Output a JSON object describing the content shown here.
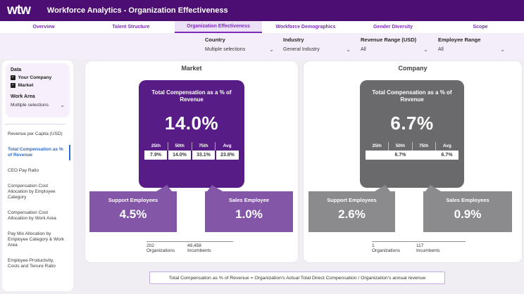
{
  "header": {
    "logo": "wtw",
    "title": "Workforce Analytics - Organization Effectiveness"
  },
  "tabs": [
    {
      "label": "Overview",
      "selected": false
    },
    {
      "label": "Talent Structure",
      "selected": false
    },
    {
      "label": "Organization Effectiveness",
      "selected": true
    },
    {
      "label": "Workforce Demographics",
      "selected": false
    },
    {
      "label": "Gender Diversity",
      "selected": false
    },
    {
      "label": "Scope",
      "selected": false
    }
  ],
  "filters": [
    {
      "label": "Country",
      "value": "Multiple selections"
    },
    {
      "label": "Industry",
      "value": "General Industry"
    },
    {
      "label": "Revenue Range (USD)",
      "value": "All"
    },
    {
      "label": "Employee Range",
      "value": "All"
    }
  ],
  "sidebar": {
    "data_title": "Data",
    "data_options": [
      {
        "label": "Your Company",
        "checked": true
      },
      {
        "label": "Market",
        "checked": true
      }
    ],
    "work_area_title": "Work Area",
    "work_area_value": "Multiple selections",
    "nav": [
      {
        "label": "Revenue per Capita (USD)",
        "selected": false
      },
      {
        "label": "Total Compensation as % of Revenue",
        "selected": true
      },
      {
        "label": "CEO Pay Ratio",
        "selected": false
      },
      {
        "label": "Compensation Cost Allocation by Employee Category",
        "selected": false
      },
      {
        "label": "Compensation Cost Allocation by Work Area",
        "selected": false
      },
      {
        "label": "Pay Mix Allocation by Employee Category & Work Area",
        "selected": false
      },
      {
        "label": "Employee Productivity, Costs and Tenure Ratio",
        "selected": false
      }
    ]
  },
  "panels": [
    {
      "title": "Market",
      "main_card": {
        "title": "Total Compensation as a % of Revenue",
        "value": "14.0%",
        "percentile_headers": [
          "25th",
          "50th",
          "75th",
          "Avg"
        ],
        "percentile_values": [
          "7.9%",
          "14.0%",
          "33.1%",
          "23.8%"
        ]
      },
      "sub_cards": [
        {
          "label": "Support Employees",
          "value": "4.5%"
        },
        {
          "label": "Sales Employee",
          "value": "1.0%"
        }
      ],
      "stats": [
        {
          "value": "202",
          "label": "Organizations"
        },
        {
          "value": "49,458",
          "label": "Incumbents"
        }
      ]
    },
    {
      "title": "Company",
      "main_card": {
        "title": "Total Compensation as a % of Revenue",
        "value": "6.7%",
        "percentile_headers": [
          "25th",
          "50th",
          "75th",
          "Avg"
        ],
        "percentile_values": [
          "",
          "6.7%",
          "",
          "6.7%"
        ]
      },
      "sub_cards": [
        {
          "label": "Support Employees",
          "value": "2.6%"
        },
        {
          "label": "Sales Employees",
          "value": "0.9%"
        }
      ],
      "stats": [
        {
          "value": "1",
          "label": "Organizations"
        },
        {
          "value": "117",
          "label": "Incumbents"
        }
      ]
    }
  ],
  "note": "Total Compensation as % of Revenue = Organization's Actual Total Direct Compensation / Organization's annual revenue",
  "colors": {
    "header_purple": "#4c0e72",
    "accent_purple": "#7a2eb8",
    "market_card_purple": "#571c86",
    "market_sub_purple": "#8356a8",
    "company_card_gray": "#6a696b",
    "company_sub_gray": "#8b8a8c",
    "selected_item_blue": "#2b6cd6",
    "filter_bar_bg": "#f4eefa",
    "page_bg": "#f0eef3"
  }
}
